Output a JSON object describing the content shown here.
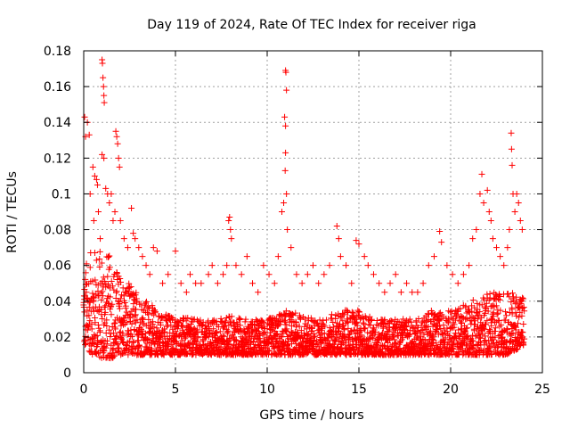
{
  "chart_data": {
    "type": "scatter",
    "title": "Day 119 of 2024, Rate Of TEC Index for receiver riga",
    "xlabel": "GPS time / hours",
    "ylabel": "ROTI / TECUs",
    "xlim": [
      0,
      25
    ],
    "ylim": [
      0,
      0.18
    ],
    "xticks": [
      0,
      5,
      10,
      15,
      20,
      25
    ],
    "xtick_labels": [
      "0",
      "5",
      "10",
      "15",
      "20",
      "25"
    ],
    "yticks": [
      0,
      0.02,
      0.04,
      0.06,
      0.08,
      0.1,
      0.12,
      0.14,
      0.16,
      0.18
    ],
    "ytick_labels": [
      "0",
      "0.02",
      "0.04",
      "0.06",
      "0.08",
      "0.1",
      "0.12",
      "0.14",
      "0.16",
      "0.18"
    ],
    "grid": true,
    "marker": "+",
    "color": "#ff0000",
    "series": [
      {
        "name": "ROTI",
        "points": [
          [
            0.05,
            0.143
          ],
          [
            0.1,
            0.132
          ],
          [
            0.2,
            0.14
          ],
          [
            0.3,
            0.133
          ],
          [
            0.35,
            0.1
          ],
          [
            0.5,
            0.115
          ],
          [
            0.55,
            0.085
          ],
          [
            0.6,
            0.11
          ],
          [
            0.7,
            0.108
          ],
          [
            0.75,
            0.105
          ],
          [
            0.8,
            0.09
          ],
          [
            0.9,
            0.075
          ],
          [
            1.0,
            0.175
          ],
          [
            1.02,
            0.173
          ],
          [
            1.05,
            0.165
          ],
          [
            1.08,
            0.16
          ],
          [
            1.1,
            0.155
          ],
          [
            1.12,
            0.151
          ],
          [
            1.0,
            0.122
          ],
          [
            1.1,
            0.12
          ],
          [
            1.2,
            0.103
          ],
          [
            1.3,
            0.1
          ],
          [
            1.4,
            0.095
          ],
          [
            1.5,
            0.1
          ],
          [
            1.6,
            0.085
          ],
          [
            1.7,
            0.09
          ],
          [
            1.75,
            0.135
          ],
          [
            1.8,
            0.132
          ],
          [
            1.85,
            0.128
          ],
          [
            1.9,
            0.12
          ],
          [
            1.95,
            0.115
          ],
          [
            2.0,
            0.085
          ],
          [
            2.2,
            0.075
          ],
          [
            2.4,
            0.07
          ],
          [
            2.6,
            0.092
          ],
          [
            2.7,
            0.078
          ],
          [
            2.8,
            0.075
          ],
          [
            3.0,
            0.07
          ],
          [
            3.2,
            0.065
          ],
          [
            3.4,
            0.06
          ],
          [
            3.6,
            0.055
          ],
          [
            3.8,
            0.07
          ],
          [
            4.0,
            0.068
          ],
          [
            4.3,
            0.05
          ],
          [
            4.6,
            0.055
          ],
          [
            5.0,
            0.068
          ],
          [
            5.3,
            0.05
          ],
          [
            5.6,
            0.045
          ],
          [
            5.8,
            0.055
          ],
          [
            6.1,
            0.05
          ],
          [
            6.4,
            0.05
          ],
          [
            6.8,
            0.055
          ],
          [
            7.0,
            0.06
          ],
          [
            7.3,
            0.05
          ],
          [
            7.6,
            0.055
          ],
          [
            7.8,
            0.06
          ],
          [
            7.9,
            0.085
          ],
          [
            7.95,
            0.087
          ],
          [
            8.0,
            0.08
          ],
          [
            8.05,
            0.075
          ],
          [
            8.3,
            0.06
          ],
          [
            8.6,
            0.055
          ],
          [
            8.9,
            0.065
          ],
          [
            9.2,
            0.05
          ],
          [
            9.5,
            0.045
          ],
          [
            9.8,
            0.06
          ],
          [
            10.1,
            0.055
          ],
          [
            10.4,
            0.05
          ],
          [
            10.6,
            0.065
          ],
          [
            10.8,
            0.09
          ],
          [
            10.9,
            0.095
          ],
          [
            11.0,
            0.169
          ],
          [
            11.02,
            0.168
          ],
          [
            11.05,
            0.158
          ],
          [
            10.95,
            0.143
          ],
          [
            11.0,
            0.138
          ],
          [
            11.0,
            0.123
          ],
          [
            10.98,
            0.113
          ],
          [
            11.05,
            0.1
          ],
          [
            11.1,
            0.08
          ],
          [
            11.3,
            0.07
          ],
          [
            11.6,
            0.055
          ],
          [
            11.9,
            0.05
          ],
          [
            12.2,
            0.055
          ],
          [
            12.5,
            0.06
          ],
          [
            12.8,
            0.05
          ],
          [
            13.1,
            0.055
          ],
          [
            13.4,
            0.06
          ],
          [
            13.8,
            0.082
          ],
          [
            13.9,
            0.075
          ],
          [
            14.0,
            0.065
          ],
          [
            14.3,
            0.06
          ],
          [
            14.6,
            0.05
          ],
          [
            14.85,
            0.074
          ],
          [
            15.0,
            0.072
          ],
          [
            15.3,
            0.065
          ],
          [
            15.5,
            0.06
          ],
          [
            15.8,
            0.055
          ],
          [
            16.1,
            0.05
          ],
          [
            16.4,
            0.045
          ],
          [
            16.7,
            0.05
          ],
          [
            17.0,
            0.055
          ],
          [
            17.3,
            0.045
          ],
          [
            17.6,
            0.05
          ],
          [
            17.9,
            0.045
          ],
          [
            18.2,
            0.045
          ],
          [
            18.5,
            0.05
          ],
          [
            18.8,
            0.06
          ],
          [
            19.1,
            0.065
          ],
          [
            19.4,
            0.079
          ],
          [
            19.5,
            0.073
          ],
          [
            19.8,
            0.06
          ],
          [
            20.1,
            0.055
          ],
          [
            20.4,
            0.05
          ],
          [
            20.7,
            0.055
          ],
          [
            21.0,
            0.06
          ],
          [
            21.2,
            0.075
          ],
          [
            21.4,
            0.08
          ],
          [
            21.6,
            0.1
          ],
          [
            21.7,
            0.111
          ],
          [
            21.8,
            0.095
          ],
          [
            22.0,
            0.102
          ],
          [
            22.1,
            0.09
          ],
          [
            22.2,
            0.085
          ],
          [
            22.3,
            0.075
          ],
          [
            22.5,
            0.07
          ],
          [
            22.7,
            0.065
          ],
          [
            22.9,
            0.06
          ],
          [
            23.1,
            0.07
          ],
          [
            23.2,
            0.08
          ],
          [
            23.3,
            0.134
          ],
          [
            23.32,
            0.125
          ],
          [
            23.35,
            0.116
          ],
          [
            23.4,
            0.1
          ],
          [
            23.5,
            0.09
          ],
          [
            23.6,
            0.1
          ],
          [
            23.7,
            0.095
          ],
          [
            23.8,
            0.085
          ],
          [
            23.9,
            0.08
          ]
        ],
        "envelope": {
          "hours": [
            0,
            0.5,
            1.0,
            1.5,
            2.0,
            2.5,
            3.0,
            3.5,
            4.0,
            5.0,
            6.0,
            7.0,
            8.0,
            9.0,
            10.0,
            11.0,
            12.0,
            13.0,
            14.0,
            15.0,
            16.0,
            17.0,
            18.0,
            19.0,
            20.0,
            21.0,
            22.0,
            23.0,
            24.0
          ],
          "lower": [
            0.015,
            0.01,
            0.008,
            0.008,
            0.01,
            0.01,
            0.01,
            0.01,
            0.01,
            0.01,
            0.01,
            0.01,
            0.01,
            0.01,
            0.01,
            0.01,
            0.01,
            0.01,
            0.01,
            0.01,
            0.01,
            0.01,
            0.01,
            0.01,
            0.01,
            0.01,
            0.01,
            0.01,
            0.015
          ],
          "upper": [
            0.06,
            0.07,
            0.07,
            0.065,
            0.055,
            0.05,
            0.045,
            0.04,
            0.035,
            0.032,
            0.03,
            0.03,
            0.032,
            0.03,
            0.03,
            0.035,
            0.032,
            0.03,
            0.035,
            0.035,
            0.03,
            0.03,
            0.03,
            0.035,
            0.035,
            0.04,
            0.045,
            0.045,
            0.045
          ],
          "step_hours": 0.025
        }
      }
    ]
  }
}
